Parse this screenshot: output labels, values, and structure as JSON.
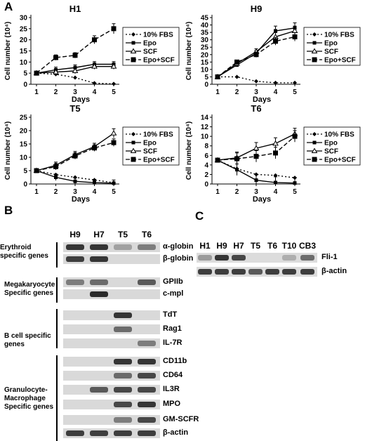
{
  "panel_a": {
    "letter": "A",
    "chart_data": [
      {
        "type": "line",
        "title": "H1",
        "xlabel": "Days",
        "ylabel": "Cell number (10⁴)",
        "x": [
          1,
          2,
          3,
          4,
          5
        ],
        "yticks": [
          0,
          5,
          10,
          15,
          20,
          25,
          30
        ],
        "ylim": [
          0,
          30
        ],
        "series": [
          {
            "name": "10% FBS",
            "values": [
              5,
              4.5,
              3,
              0.5,
              0.2
            ]
          },
          {
            "name": "Epo",
            "values": [
              5,
              6.5,
              7.5,
              9,
              9
            ]
          },
          {
            "name": "SCF",
            "values": [
              5,
              5.5,
              6,
              8,
              8
            ]
          },
          {
            "name": "Epo+SCF",
            "values": [
              5,
              12,
              13,
              20,
              25
            ]
          }
        ]
      },
      {
        "type": "line",
        "title": "H9",
        "xlabel": "Days",
        "ylabel": "Cell number (10⁴)",
        "x": [
          1,
          2,
          3,
          4,
          5
        ],
        "yticks": [
          0,
          5,
          10,
          15,
          20,
          25,
          30,
          35,
          40,
          45
        ],
        "ylim": [
          0,
          45
        ],
        "series": [
          {
            "name": "10% FBS",
            "values": [
              5,
              5,
              2,
              1,
              1
            ]
          },
          {
            "name": "Epo",
            "values": [
              5,
              13,
              21,
              36,
              38
            ]
          },
          {
            "name": "SCF",
            "values": [
              5,
              14,
              22,
              32,
              36
            ]
          },
          {
            "name": "Epo+SCF",
            "values": [
              5,
              15,
              20,
              29,
              32
            ]
          }
        ]
      },
      {
        "type": "line",
        "title": "T5",
        "xlabel": "Days",
        "ylabel": "Cell number (10⁴)",
        "x": [
          1,
          2,
          3,
          4,
          5
        ],
        "yticks": [
          0,
          5,
          10,
          15,
          20,
          25
        ],
        "ylim": [
          0,
          25
        ],
        "series": [
          {
            "name": "10% FBS",
            "values": [
              5,
              3.5,
              2.5,
              1.5,
              0.5
            ]
          },
          {
            "name": "Epo",
            "values": [
              5,
              2.5,
              1,
              0.5,
              0.3
            ]
          },
          {
            "name": "SCF",
            "values": [
              5,
              7,
              11,
              14,
              19
            ]
          },
          {
            "name": "Epo+SCF",
            "values": [
              5,
              6.5,
              10.5,
              13.5,
              15.5
            ]
          }
        ]
      },
      {
        "type": "line",
        "title": "T6",
        "xlabel": "Days",
        "ylabel": "Cell number (10⁴)",
        "x": [
          1,
          2,
          3,
          4,
          5
        ],
        "yticks": [
          0,
          2,
          4,
          6,
          8,
          10,
          12,
          14
        ],
        "ylim": [
          0,
          14
        ],
        "series": [
          {
            "name": "10% FBS",
            "values": [
              5,
              3.2,
              2,
              1.8,
              1.3
            ]
          },
          {
            "name": "Epo",
            "values": [
              5,
              3,
              0.8,
              0.3,
              0.2
            ]
          },
          {
            "name": "SCF",
            "values": [
              5,
              5.5,
              7.5,
              8.5,
              10.5
            ]
          },
          {
            "name": "Epo+SCF",
            "values": [
              5,
              5.3,
              5.8,
              6.5,
              10
            ]
          }
        ]
      }
    ]
  },
  "panel_b": {
    "letter": "B",
    "lanes": [
      "H9",
      "H7",
      "T5",
      "T6"
    ],
    "groups": [
      {
        "label": "Erythroid specific genes"
      },
      {
        "label": "Megakaryocyte Specific genes"
      },
      {
        "label": "B cell specific genes"
      },
      {
        "label": "Granulocyte-Macrophage Specific genes"
      }
    ],
    "genes": [
      "α-globin",
      "β-globin",
      "GPIIb",
      "c-mpl",
      "TdT",
      "Rag1",
      "IL-7R",
      "CD11b",
      "CD64",
      "IL3R",
      "MPO",
      "GM-SCFR",
      "β-actin"
    ],
    "bands": [
      [
        0.9,
        0.9,
        0.3,
        0.5
      ],
      [
        0.85,
        0.9,
        0,
        0
      ],
      [
        0.5,
        0.6,
        0,
        0.7
      ],
      [
        0,
        0.95,
        0,
        0
      ],
      [
        0,
        0,
        0.9,
        0
      ],
      [
        0,
        0,
        0.6,
        0
      ],
      [
        0,
        0,
        0,
        0.5
      ],
      [
        0,
        0,
        0.9,
        0.9
      ],
      [
        0,
        0,
        0.6,
        0.8
      ],
      [
        0,
        0.7,
        0.8,
        0.8
      ],
      [
        0,
        0,
        0.8,
        0.9
      ],
      [
        0,
        0,
        0.5,
        0.8
      ],
      [
        0.85,
        0.85,
        0.85,
        0.85
      ]
    ]
  },
  "panel_c": {
    "letter": "C",
    "lanes": [
      "H1",
      "H9",
      "H7",
      "T5",
      "T6",
      "T10",
      "CB3"
    ],
    "genes": [
      "Fli-1",
      "β-actin"
    ],
    "bands": [
      [
        0.35,
        0.9,
        0.8,
        0,
        0,
        0.25,
        0.6
      ],
      [
        0.85,
        0.85,
        0.85,
        0.7,
        0.85,
        0.85,
        0.85
      ]
    ]
  }
}
